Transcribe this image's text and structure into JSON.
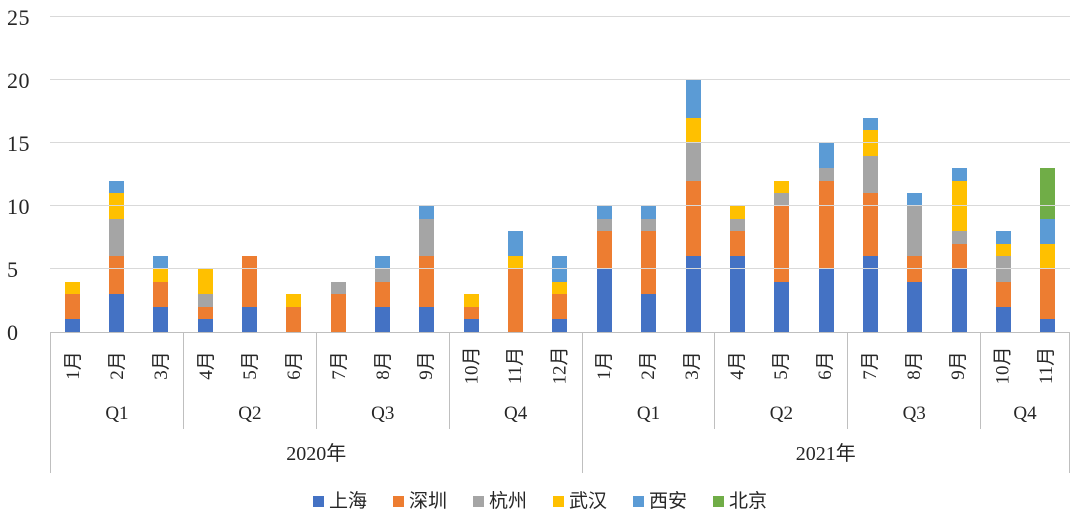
{
  "chart_data": {
    "type": "bar",
    "stacked": true,
    "title": "",
    "ylim": [
      0,
      25
    ],
    "yticks": [
      0,
      5,
      10,
      15,
      20,
      25
    ],
    "grid": "horizontal",
    "legend_position": "bottom",
    "series_names": [
      "上海",
      "深圳",
      "杭州",
      "武汉",
      "西安",
      "北京"
    ],
    "series_colors": [
      "#4472C4",
      "#ED7D31",
      "#A5A5A5",
      "#FFC000",
      "#5B9BD5",
      "#70AD47"
    ],
    "groups": [
      {
        "year": "2020年",
        "quarters": [
          {
            "label": "Q1",
            "months": [
              {
                "label": "1月",
                "values": [
                  1,
                  2,
                  0,
                  1,
                  0,
                  0
                ]
              },
              {
                "label": "2月",
                "values": [
                  3,
                  3,
                  3,
                  2,
                  1,
                  0
                ]
              },
              {
                "label": "3月",
                "values": [
                  2,
                  2,
                  0,
                  1,
                  1,
                  0
                ]
              }
            ]
          },
          {
            "label": "Q2",
            "months": [
              {
                "label": "4月",
                "values": [
                  1,
                  1,
                  1,
                  2,
                  0,
                  0
                ]
              },
              {
                "label": "5月",
                "values": [
                  2,
                  4,
                  0,
                  0,
                  0,
                  0
                ]
              },
              {
                "label": "6月",
                "values": [
                  0,
                  2,
                  0,
                  1,
                  0,
                  0
                ]
              }
            ]
          },
          {
            "label": "Q3",
            "months": [
              {
                "label": "7月",
                "values": [
                  0,
                  3,
                  1,
                  0,
                  0,
                  0
                ]
              },
              {
                "label": "8月",
                "values": [
                  2,
                  2,
                  1,
                  0,
                  1,
                  0
                ]
              },
              {
                "label": "9月",
                "values": [
                  2,
                  4,
                  3,
                  0,
                  1,
                  0
                ]
              }
            ]
          },
          {
            "label": "Q4",
            "months": [
              {
                "label": "10月",
                "values": [
                  1,
                  1,
                  0,
                  1,
                  0,
                  0
                ]
              },
              {
                "label": "11月",
                "values": [
                  0,
                  5,
                  0,
                  1,
                  2,
                  0
                ]
              },
              {
                "label": "12月",
                "values": [
                  1,
                  2,
                  0,
                  1,
                  2,
                  0
                ]
              }
            ]
          }
        ]
      },
      {
        "year": "2021年",
        "quarters": [
          {
            "label": "Q1",
            "months": [
              {
                "label": "1月",
                "values": [
                  5,
                  3,
                  1,
                  0,
                  1,
                  0
                ]
              },
              {
                "label": "2月",
                "values": [
                  3,
                  5,
                  1,
                  0,
                  1,
                  0
                ]
              },
              {
                "label": "3月",
                "values": [
                  6,
                  6,
                  3,
                  2,
                  3,
                  0
                ]
              }
            ]
          },
          {
            "label": "Q2",
            "months": [
              {
                "label": "4月",
                "values": [
                  6,
                  2,
                  1,
                  1,
                  0,
                  0
                ]
              },
              {
                "label": "5月",
                "values": [
                  4,
                  6,
                  1,
                  1,
                  0,
                  0
                ]
              },
              {
                "label": "6月",
                "values": [
                  5,
                  7,
                  1,
                  0,
                  2,
                  0
                ]
              }
            ]
          },
          {
            "label": "Q3",
            "months": [
              {
                "label": "7月",
                "values": [
                  6,
                  5,
                  3,
                  2,
                  1,
                  0
                ]
              },
              {
                "label": "8月",
                "values": [
                  4,
                  2,
                  4,
                  0,
                  1,
                  0
                ]
              },
              {
                "label": "9月",
                "values": [
                  5,
                  2,
                  1,
                  4,
                  1,
                  0
                ]
              }
            ]
          },
          {
            "label": "Q4",
            "months": [
              {
                "label": "10月",
                "values": [
                  2,
                  2,
                  2,
                  1,
                  1,
                  0
                ]
              },
              {
                "label": "11月",
                "values": [
                  1,
                  4,
                  0,
                  2,
                  2,
                  4
                ]
              }
            ]
          }
        ]
      }
    ],
    "legend_items": [
      "上海",
      "深圳",
      "杭州",
      "武汉",
      "西安",
      "北京"
    ]
  },
  "colors": {
    "background": "#FFFFFF",
    "gridline": "#D9D9D9",
    "axis_line": "#BFBFBF",
    "text": "#262626"
  }
}
